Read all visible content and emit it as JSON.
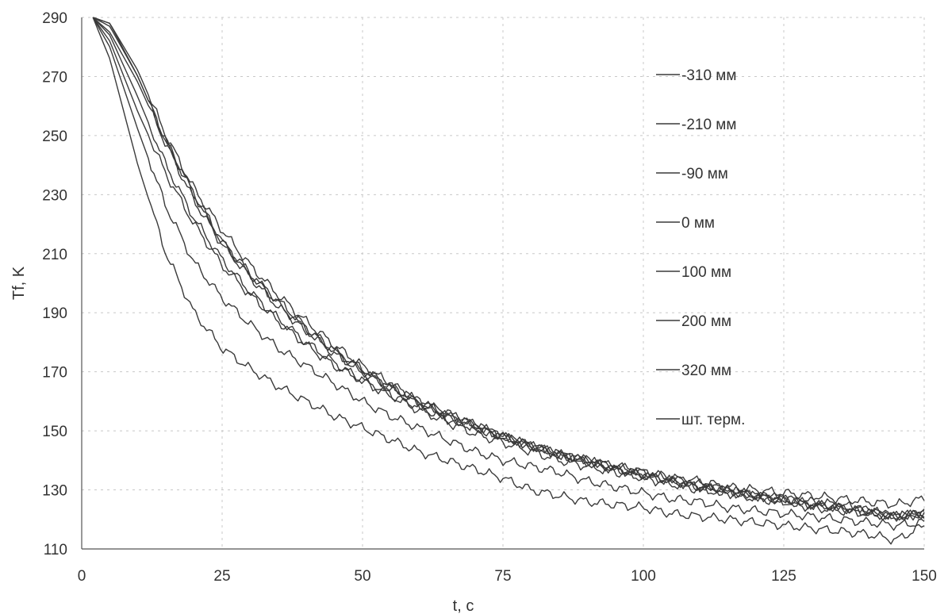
{
  "chart_data": {
    "type": "line",
    "title": "",
    "xlabel": "t, c",
    "ylabel": "Tf, K",
    "xlim": [
      0,
      150
    ],
    "ylim": [
      110,
      290
    ],
    "xticks": [
      0,
      25,
      50,
      75,
      100,
      125,
      150
    ],
    "yticks": [
      110,
      130,
      150,
      170,
      190,
      210,
      230,
      250,
      270,
      290
    ],
    "grid": true,
    "legend_position": "top-right",
    "line_color": "#3a3a3a",
    "x": [
      2,
      5,
      10,
      15,
      20,
      25,
      30,
      35,
      40,
      45,
      50,
      55,
      60,
      65,
      70,
      75,
      80,
      85,
      90,
      95,
      100,
      105,
      110,
      115,
      120,
      125,
      130,
      135,
      140,
      145,
      150
    ],
    "series": [
      {
        "name": "-310 мм",
        "values": [
          290,
          282,
          258,
          237,
          220,
          206,
          196,
          187,
          179,
          172,
          167,
          162,
          158,
          154,
          151,
          148,
          145,
          142,
          140,
          138,
          136,
          134,
          132,
          130,
          128,
          127,
          126,
          125,
          123,
          121,
          122
        ]
      },
      {
        "name": "-210 мм",
        "values": [
          290,
          288,
          272,
          250,
          232,
          218,
          206,
          196,
          187,
          179,
          172,
          166,
          160,
          156,
          152,
          148,
          145,
          142,
          140,
          138,
          136,
          134,
          133,
          131,
          130,
          129,
          128,
          127,
          126,
          125,
          127
        ]
      },
      {
        "name": "-90 мм",
        "values": [
          290,
          285,
          268,
          247,
          228,
          213,
          202,
          192,
          184,
          176,
          170,
          164,
          159,
          155,
          151,
          148,
          145,
          142,
          139,
          137,
          135,
          133,
          131,
          129,
          128,
          126,
          125,
          124,
          123,
          121,
          122
        ]
      },
      {
        "name": "0 мм",
        "values": [
          290,
          287,
          270,
          248,
          230,
          214,
          203,
          193,
          184,
          177,
          170,
          165,
          160,
          155,
          152,
          148,
          145,
          142,
          140,
          137,
          135,
          133,
          131,
          130,
          128,
          127,
          125,
          124,
          122,
          121,
          122
        ]
      },
      {
        "name": "100 мм",
        "values": [
          290,
          284,
          263,
          240,
          222,
          208,
          197,
          188,
          180,
          173,
          167,
          162,
          157,
          153,
          149,
          146,
          143,
          140,
          138,
          136,
          134,
          132,
          130,
          129,
          127,
          126,
          124,
          123,
          122,
          121,
          122
        ]
      },
      {
        "name": "200 мм",
        "values": [
          290,
          280,
          252,
          226,
          207,
          195,
          186,
          178,
          172,
          166,
          160,
          155,
          151,
          147,
          143,
          140,
          138,
          136,
          133,
          131,
          129,
          127,
          126,
          124,
          123,
          122,
          121,
          120,
          119,
          118,
          119
        ]
      },
      {
        "name": "320 мм",
        "values": [
          290,
          276,
          240,
          210,
          190,
          178,
          171,
          165,
          160,
          155,
          151,
          147,
          143,
          140,
          137,
          134,
          130,
          128,
          126,
          125,
          124,
          122,
          121,
          120,
          119,
          118,
          117,
          116,
          115,
          113,
          118
        ]
      },
      {
        "name": "шт. терм.",
        "values": [
          290,
          288,
          270,
          248,
          230,
          214,
          203,
          194,
          185,
          177,
          171,
          165,
          160,
          156,
          152,
          148,
          145,
          142,
          140,
          137,
          135,
          133,
          131,
          130,
          128,
          127,
          125,
          124,
          123,
          121,
          122
        ]
      }
    ]
  }
}
